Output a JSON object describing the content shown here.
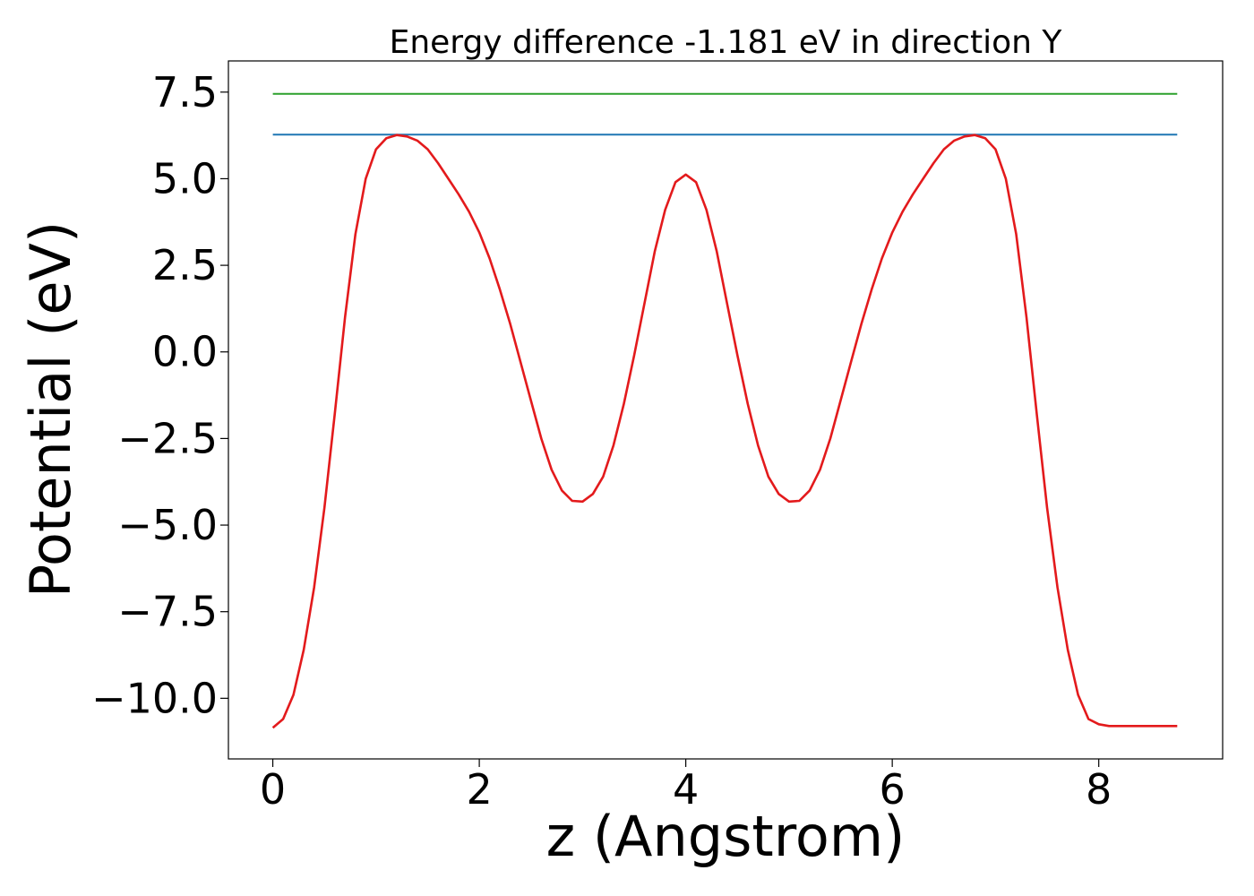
{
  "chart_data": {
    "type": "line",
    "title": "Energy difference -1.181 eV in direction Y",
    "xlabel": "z (Angstrom)",
    "ylabel": "Potential (eV)",
    "xlim": [
      -0.43,
      9.2
    ],
    "ylim": [
      -11.75,
      8.4
    ],
    "grid": false,
    "xticks": [
      0,
      2,
      4,
      6,
      8
    ],
    "xtick_labels": [
      "0",
      "2",
      "4",
      "6",
      "8"
    ],
    "yticks": [
      -10.0,
      -7.5,
      -5.0,
      -2.5,
      0.0,
      2.5,
      5.0,
      7.5
    ],
    "ytick_labels": [
      "−10.0",
      "−7.5",
      "−5.0",
      "−2.5",
      "0.0",
      "2.5",
      "5.0",
      "7.5"
    ],
    "series": [
      {
        "color": "#2ca02c",
        "style": "horizontal",
        "x": [
          0,
          8.76
        ],
        "values": [
          7.45,
          7.45
        ]
      },
      {
        "color": "#1f77b4",
        "style": "horizontal",
        "x": [
          0,
          8.76
        ],
        "values": [
          6.27,
          6.27
        ]
      },
      {
        "color": "#e31a1c",
        "style": "curve",
        "x": [
          0,
          0.1,
          0.2,
          0.3,
          0.4,
          0.5,
          0.6,
          0.7,
          0.8,
          0.9,
          1.0,
          1.1,
          1.2,
          1.3,
          1.4,
          1.5,
          1.6,
          1.7,
          1.8,
          1.9,
          2.0,
          2.1,
          2.2,
          2.3,
          2.4,
          2.5,
          2.6,
          2.7,
          2.8,
          2.9,
          3.0,
          3.1,
          3.2,
          3.3,
          3.4,
          3.5,
          3.6,
          3.7,
          3.8,
          3.9,
          4.0,
          4.1,
          4.2,
          4.3,
          4.4,
          4.5,
          4.6,
          4.7,
          4.8,
          4.9,
          5.0,
          5.1,
          5.2,
          5.3,
          5.4,
          5.5,
          5.6,
          5.7,
          5.8,
          5.9,
          6.0,
          6.1,
          6.2,
          6.3,
          6.4,
          6.5,
          6.6,
          6.7,
          6.8,
          6.9,
          7.0,
          7.1,
          7.2,
          7.3,
          7.4,
          7.5,
          7.6,
          7.7,
          7.8,
          7.9,
          8.0,
          8.1,
          8.2,
          8.3,
          8.4,
          8.5,
          8.6,
          8.7,
          8.76
        ],
        "values": [
          -10.85,
          -10.6,
          -9.9,
          -8.6,
          -6.8,
          -4.5,
          -1.8,
          1.0,
          3.4,
          5.0,
          5.85,
          6.17,
          6.26,
          6.22,
          6.1,
          5.85,
          5.45,
          5.0,
          4.55,
          4.05,
          3.45,
          2.7,
          1.8,
          0.8,
          -0.3,
          -1.4,
          -2.5,
          -3.4,
          -4.0,
          -4.3,
          -4.32,
          -4.1,
          -3.6,
          -2.7,
          -1.5,
          -0.1,
          1.4,
          2.9,
          4.1,
          4.9,
          5.12,
          4.9,
          4.1,
          2.9,
          1.4,
          -0.1,
          -1.5,
          -2.7,
          -3.6,
          -4.1,
          -4.32,
          -4.3,
          -4.0,
          -3.4,
          -2.5,
          -1.4,
          -0.3,
          0.8,
          1.8,
          2.7,
          3.45,
          4.05,
          4.55,
          5.0,
          5.45,
          5.85,
          6.1,
          6.22,
          6.26,
          6.17,
          5.85,
          5.0,
          3.4,
          1.0,
          -1.8,
          -4.5,
          -6.8,
          -8.6,
          -9.9,
          -10.6,
          -10.75,
          -10.8,
          -10.8,
          -10.8,
          -10.8,
          -10.8,
          -10.8,
          -10.8,
          -10.8
        ]
      }
    ]
  }
}
